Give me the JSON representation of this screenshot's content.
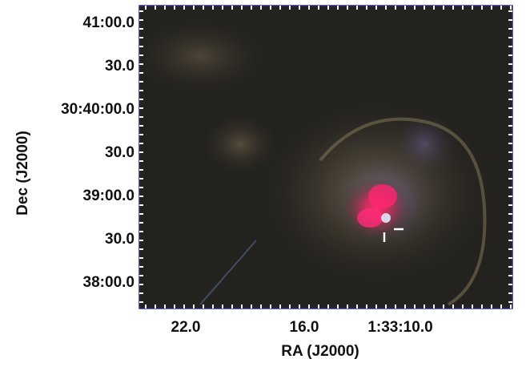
{
  "image": {
    "x_label": "RA (J2000)",
    "y_label": "Dec (J2000)",
    "x_ticks": [
      "22.0",
      "16.0",
      "1:33:10.0"
    ],
    "y_ticks": [
      "41:00.0",
      "30.0",
      "30:40:00.0",
      "30.0",
      "39:00.0",
      "30.0",
      "38:00.0"
    ]
  }
}
